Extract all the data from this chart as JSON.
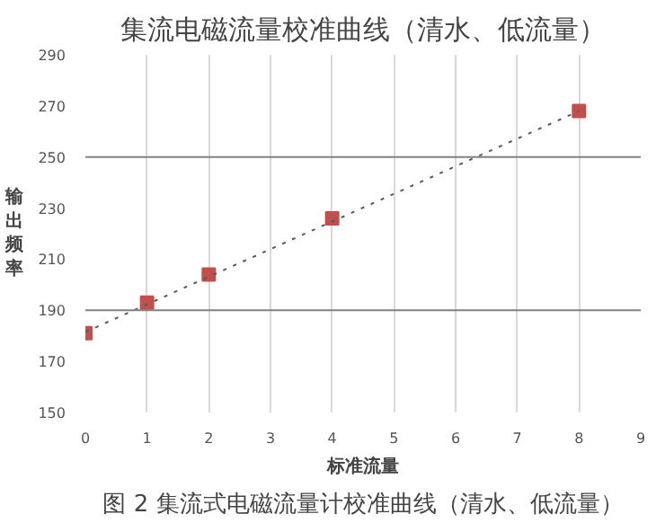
{
  "chart_data": {
    "type": "scatter",
    "title": "集流电磁流量校准曲线（清水、低流量）",
    "xlabel": "标准流量",
    "ylabel": "输出频率",
    "x": [
      0,
      1,
      2,
      4,
      8
    ],
    "series": [
      {
        "color": "#c0504d",
        "values": [
          181,
          193,
          204,
          226,
          268
        ],
        "marker": "square"
      },
      {
        "type": "line",
        "color": "#595959",
        "x": [
          0,
          8
        ],
        "values": [
          181.5,
          268
        ],
        "line_style": "dotted",
        "marker": "none"
      }
    ],
    "xlim": [
      0,
      9
    ],
    "ylim": [
      150,
      290
    ],
    "xticks": [
      0,
      1,
      2,
      3,
      4,
      5,
      6,
      7,
      8,
      9
    ],
    "yticks": [
      150,
      170,
      190,
      210,
      230,
      250,
      270,
      290
    ],
    "grid": "x",
    "ref_lines": [
      {
        "axis": "y",
        "value": 190,
        "color": "#808080"
      },
      {
        "axis": "y",
        "value": 250,
        "color": "#808080"
      }
    ],
    "annotations": [
      "图 2 集流式电磁流量计校准曲线（清水、低流量）"
    ]
  }
}
